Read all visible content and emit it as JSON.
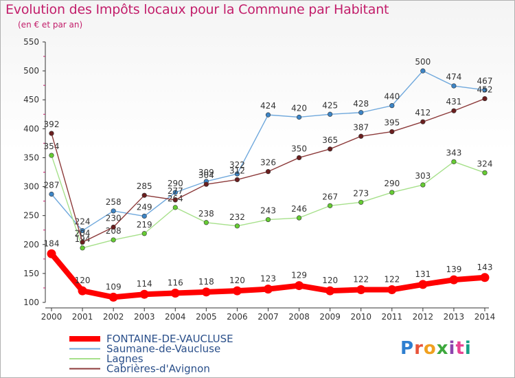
{
  "page": {
    "title": "Evolution des Impôts locaux pour la Commune par Habitant",
    "subtitle": "(en € et par an)"
  },
  "logo": {
    "text": "Proxiti",
    "colors": [
      "#2e7fd0",
      "#e8543a",
      "#f0a020",
      "#3da83d",
      "#8e44ad",
      "#e84393",
      "#16a085"
    ]
  },
  "chart_data": {
    "type": "line",
    "x": [
      2000,
      2001,
      2002,
      2003,
      2004,
      2005,
      2006,
      2007,
      2008,
      2009,
      2010,
      2011,
      2012,
      2013,
      2014
    ],
    "ylim": [
      100,
      550
    ],
    "yticks": [
      100,
      150,
      200,
      250,
      300,
      350,
      400,
      450,
      500,
      550
    ],
    "grid": false,
    "legend_position": "bottom-left",
    "series": [
      {
        "name": "FONTAINE-DE-VAUCLUSE",
        "color": "#ff0000",
        "emphasis": true,
        "values": [
          184,
          120,
          109,
          114,
          116,
          118,
          120,
          123,
          129,
          120,
          122,
          122,
          131,
          139,
          143
        ],
        "labels": [
          "184",
          "120",
          "109",
          "114",
          "116",
          "118",
          "120",
          "123",
          "129",
          "120",
          "122",
          "122",
          "131",
          "139",
          "143"
        ]
      },
      {
        "name": "Saumane-de-Vaucluse",
        "color": "#6fa8dc",
        "marker": "#3d85c6",
        "values": [
          287,
          224,
          258,
          249,
          290,
          309,
          322,
          424,
          420,
          425,
          428,
          440,
          500,
          474,
          467
        ],
        "labels": [
          "287",
          "224",
          "258",
          "249",
          "290",
          "309",
          "322",
          "424",
          "420",
          "425",
          "428",
          "440",
          "500",
          "474",
          "467"
        ]
      },
      {
        "name": "Lagnes",
        "color": "#a6e08a",
        "marker": "#66cc33",
        "values": [
          354,
          194,
          208,
          219,
          264,
          238,
          232,
          243,
          246,
          267,
          273,
          290,
          303,
          343,
          324
        ],
        "labels": [
          "354",
          "194",
          "208",
          "219",
          "264",
          "238",
          "232",
          "243",
          "246",
          "267",
          "273",
          "290",
          "303",
          "343",
          "324"
        ]
      },
      {
        "name": "Cabrières-d'Avignon",
        "color": "#8c3a3a",
        "marker": "#6b1f1f",
        "values": [
          392,
          204,
          230,
          285,
          277,
          304,
          312,
          326,
          350,
          365,
          387,
          395,
          412,
          431,
          452
        ],
        "labels": [
          "392",
          "204",
          "230",
          "285",
          "277",
          "304",
          "312",
          "326",
          "350",
          "365",
          "387",
          "395",
          "412",
          "431",
          "452"
        ]
      }
    ]
  }
}
